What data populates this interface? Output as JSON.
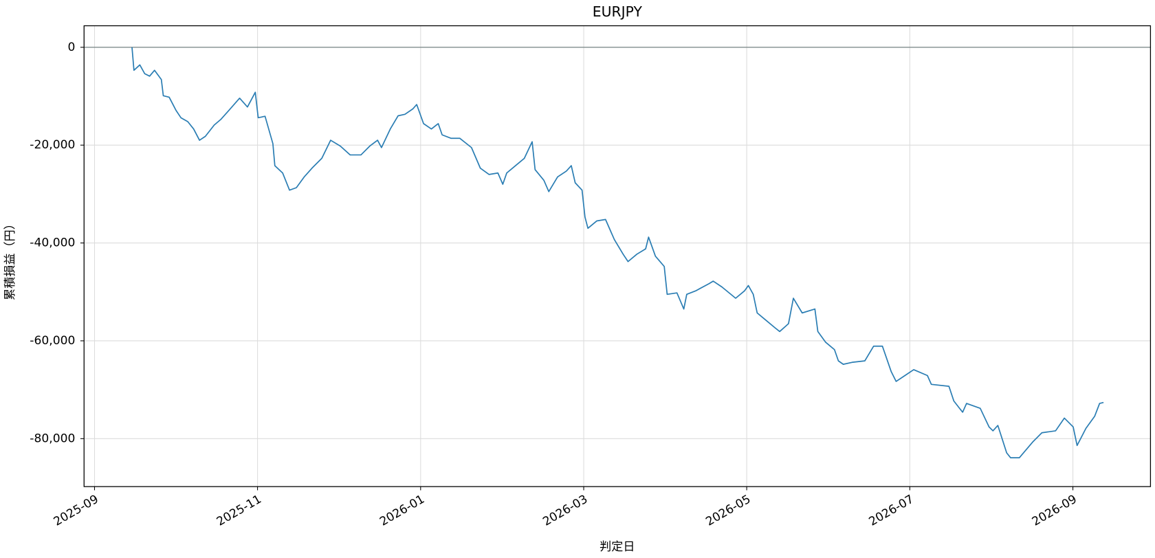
{
  "chart_data": {
    "type": "line",
    "title": "EURJPY",
    "xlabel": "判定日",
    "ylabel": "累積損益（円）",
    "color": "#2a7db3",
    "grid": true,
    "hline": 0,
    "xlim": [
      2025.656,
      2026.746
    ],
    "ylim": [
      -89800,
      4400
    ],
    "xticks": [
      {
        "value": 2025.6667,
        "label": "2025-09"
      },
      {
        "value": 2025.8333,
        "label": "2025-11"
      },
      {
        "value": 2026.0,
        "label": "2026-01"
      },
      {
        "value": 2026.1667,
        "label": "2026-03"
      },
      {
        "value": 2026.3333,
        "label": "2026-05"
      },
      {
        "value": 2026.5,
        "label": "2026-07"
      },
      {
        "value": 2026.6667,
        "label": "2026-09"
      }
    ],
    "yticks": [
      0,
      {
        "value": -20000,
        "label": "-20,000"
      },
      {
        "value": -40000,
        "label": "-40,000"
      },
      {
        "value": -60000,
        "label": "-60,000"
      },
      {
        "value": -80000,
        "label": "-80,000"
      }
    ],
    "x": [
      2025.705,
      2025.707,
      2025.713,
      2025.718,
      2025.723,
      2025.728,
      2025.735,
      2025.737,
      2025.743,
      2025.75,
      2025.755,
      2025.762,
      2025.768,
      2025.774,
      2025.78,
      2025.789,
      2025.796,
      2025.804,
      2025.815,
      2025.823,
      2025.831,
      2025.834,
      2025.841,
      2025.849,
      2025.851,
      2025.859,
      2025.866,
      2025.873,
      2025.881,
      2025.889,
      2025.899,
      2025.908,
      2025.918,
      2025.928,
      2025.939,
      2025.948,
      2025.956,
      2025.96,
      2025.969,
      2025.977,
      2025.984,
      2025.992,
      2025.996,
      2026.003,
      2026.011,
      2026.018,
      2026.022,
      2026.031,
      2026.04,
      2026.052,
      2026.061,
      2026.07,
      2026.079,
      2026.084,
      2026.088,
      2026.097,
      2026.106,
      2026.114,
      2026.117,
      2026.126,
      2026.131,
      2026.14,
      2026.149,
      2026.154,
      2026.158,
      2026.165,
      2026.168,
      2026.171,
      2026.18,
      2026.189,
      2026.198,
      2026.207,
      2026.212,
      2026.221,
      2026.23,
      2026.233,
      2026.24,
      2026.249,
      2026.252,
      2026.262,
      2026.269,
      2026.272,
      2026.281,
      2026.295,
      2026.299,
      2026.308,
      2026.322,
      2026.331,
      2026.335,
      2026.34,
      2026.344,
      2026.353,
      2026.362,
      2026.367,
      2026.376,
      2026.381,
      2026.39,
      2026.403,
      2026.406,
      2026.414,
      2026.423,
      2026.427,
      2026.432,
      2026.441,
      2026.454,
      2026.463,
      2026.472,
      2026.481,
      2026.486,
      2026.495,
      2026.504,
      2026.518,
      2026.522,
      2026.54,
      2026.545,
      2026.554,
      2026.558,
      2026.572,
      2026.581,
      2026.585,
      2026.59,
      2026.599,
      2026.603,
      2026.612,
      2026.626,
      2026.635,
      2026.649,
      2026.658,
      2026.667,
      2026.671,
      2026.68,
      2026.689,
      2026.694,
      2026.698
    ],
    "values": [
      0,
      -4700,
      -3600,
      -5400,
      -5900,
      -4700,
      -6600,
      -9900,
      -10200,
      -12900,
      -14400,
      -15200,
      -16700,
      -19000,
      -18200,
      -15900,
      -14700,
      -12900,
      -10400,
      -12200,
      -9200,
      -14400,
      -14100,
      -19700,
      -24200,
      -25700,
      -29200,
      -28700,
      -26500,
      -24700,
      -22700,
      -19000,
      -20200,
      -22000,
      -22000,
      -20200,
      -19000,
      -20500,
      -16700,
      -14000,
      -13700,
      -12600,
      -11700,
      -15600,
      -16700,
      -15600,
      -17900,
      -18600,
      -18600,
      -20500,
      -24700,
      -26000,
      -25700,
      -28000,
      -25700,
      -24200,
      -22700,
      -19300,
      -25000,
      -27200,
      -29500,
      -26500,
      -25300,
      -24200,
      -27700,
      -29200,
      -34700,
      -37000,
      -35500,
      -35200,
      -39300,
      -42300,
      -43800,
      -42300,
      -41200,
      -38800,
      -42700,
      -44800,
      -50500,
      -50200,
      -53500,
      -50500,
      -49800,
      -48300,
      -47800,
      -49000,
      -51300,
      -49800,
      -48700,
      -50500,
      -54300,
      -55800,
      -57300,
      -58100,
      -56500,
      -51300,
      -54300,
      -53500,
      -58100,
      -60300,
      -61800,
      -64100,
      -64800,
      -64400,
      -64100,
      -61100,
      -61100,
      -66300,
      -68300,
      -67100,
      -65900,
      -67100,
      -68900,
      -69300,
      -72300,
      -74600,
      -72800,
      -73800,
      -77600,
      -78400,
      -77300,
      -82900,
      -83900,
      -83900,
      -80600,
      -78800,
      -78400,
      -75800,
      -77600,
      -81400,
      -77900,
      -75400,
      -72800,
      -72600
    ]
  }
}
